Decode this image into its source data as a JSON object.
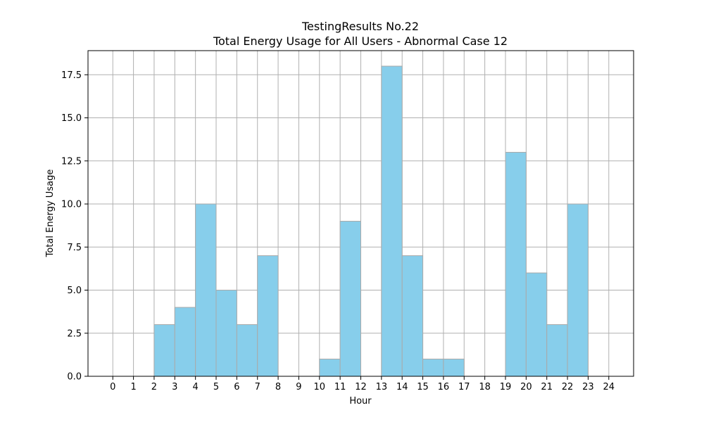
{
  "chart_data": {
    "type": "bar",
    "title": "TestingResults No.22",
    "subtitle": "Total Energy Usage for All Users - Abnormal Case 12",
    "xlabel": "Hour",
    "ylabel": "Total Energy Usage",
    "xlim": [
      -1.2,
      25.2
    ],
    "ylim": [
      0,
      18.9
    ],
    "x_ticks": [
      "0",
      "1",
      "2",
      "3",
      "4",
      "5",
      "6",
      "7",
      "8",
      "9",
      "10",
      "11",
      "12",
      "13",
      "14",
      "15",
      "16",
      "17",
      "18",
      "19",
      "20",
      "21",
      "22",
      "23",
      "24"
    ],
    "y_ticks": [
      "0.0",
      "2.5",
      "5.0",
      "7.5",
      "10.0",
      "12.5",
      "15.0",
      "17.5"
    ],
    "grid": true,
    "bar_color": "#87CEEB",
    "bar_edge_color": "#aaaaaa",
    "bars": [
      {
        "x_start": 2.0,
        "x_end": 3.0,
        "value": 3
      },
      {
        "x_start": 3.0,
        "x_end": 4.0,
        "value": 4
      },
      {
        "x_start": 4.0,
        "x_end": 5.0,
        "value": 10
      },
      {
        "x_start": 5.0,
        "x_end": 6.0,
        "value": 5
      },
      {
        "x_start": 6.0,
        "x_end": 7.0,
        "value": 3
      },
      {
        "x_start": 7.0,
        "x_end": 8.0,
        "value": 7
      },
      {
        "x_start": 10.0,
        "x_end": 11.0,
        "value": 1
      },
      {
        "x_start": 11.0,
        "x_end": 12.0,
        "value": 9
      },
      {
        "x_start": 13.0,
        "x_end": 14.0,
        "value": 18
      },
      {
        "x_start": 14.0,
        "x_end": 15.0,
        "value": 7
      },
      {
        "x_start": 15.0,
        "x_end": 16.0,
        "value": 1
      },
      {
        "x_start": 16.0,
        "x_end": 17.0,
        "value": 1
      },
      {
        "x_start": 19.0,
        "x_end": 20.0,
        "value": 13
      },
      {
        "x_start": 20.0,
        "x_end": 21.0,
        "value": 6
      },
      {
        "x_start": 21.0,
        "x_end": 22.0,
        "value": 3
      },
      {
        "x_start": 22.0,
        "x_end": 23.0,
        "value": 10
      }
    ]
  }
}
